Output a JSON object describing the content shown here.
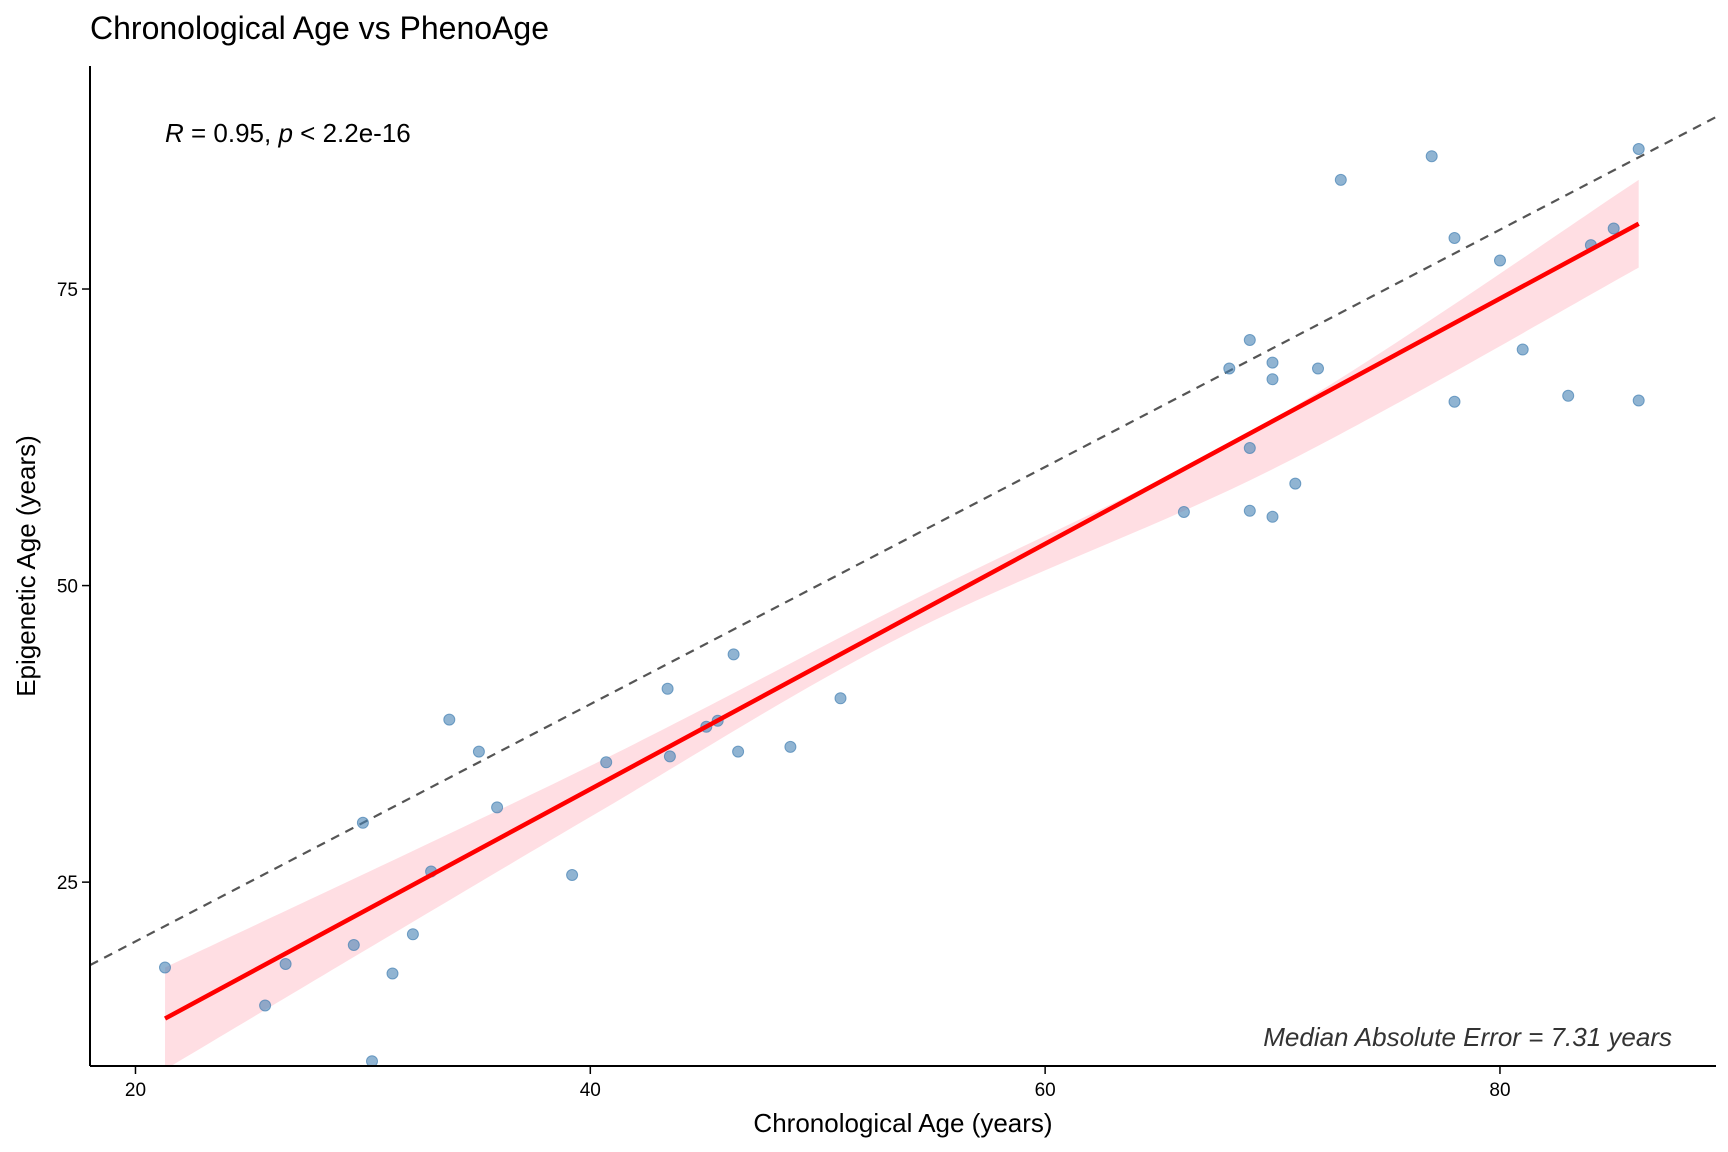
{
  "chart_data": {
    "type": "scatter",
    "title": "Chronological Age vs PhenoAge",
    "xlabel": "Chronological Age (years)",
    "ylabel": "Epigenetic Age (years)",
    "xlim": [
      18,
      89.5
    ],
    "ylim": [
      9.5,
      93.8
    ],
    "xticks": [
      20,
      40,
      60,
      80
    ],
    "yticks": [
      25,
      50,
      75
    ],
    "grid": false,
    "legend": "none",
    "annotation": {
      "R_symbol": "R",
      "r_text": " = 0.95, ",
      "p_symbol": "p",
      "p_text": " < 2.2e-16"
    },
    "mae_text": "Median Absolute Error = 7.31 years",
    "identity_line": {
      "style": "dashed",
      "color": "#555555"
    },
    "regression": {
      "color": "#FF0000",
      "ribbon_color": "#FFB6C1",
      "x_range": [
        21.3,
        86.1
      ],
      "fit": [
        [
          21.3,
          13.5
        ],
        [
          86.1,
          80.5
        ]
      ],
      "ci_band": {
        "upper": [
          [
            21.3,
            17.8
          ],
          [
            40,
            34.8
          ],
          [
            54,
            48.6
          ],
          [
            70,
            64.0
          ],
          [
            86.1,
            84.2
          ]
        ],
        "lower": [
          [
            21.3,
            9.2
          ],
          [
            40,
            30.5
          ],
          [
            54,
            46.0
          ],
          [
            70,
            59.8
          ],
          [
            86.1,
            76.8
          ]
        ]
      }
    },
    "points_color": "#4682B4",
    "points": [
      {
        "x": 21.3,
        "y": 17.8
      },
      {
        "x": 25.7,
        "y": 14.6
      },
      {
        "x": 26.6,
        "y": 18.1
      },
      {
        "x": 29.6,
        "y": 19.7
      },
      {
        "x": 30.0,
        "y": 30.0
      },
      {
        "x": 30.4,
        "y": 9.9
      },
      {
        "x": 31.3,
        "y": 17.3
      },
      {
        "x": 32.2,
        "y": 20.6
      },
      {
        "x": 33.0,
        "y": 25.9
      },
      {
        "x": 33.8,
        "y": 38.7
      },
      {
        "x": 35.1,
        "y": 36.0
      },
      {
        "x": 35.9,
        "y": 31.3
      },
      {
        "x": 39.2,
        "y": 25.6
      },
      {
        "x": 40.7,
        "y": 35.1
      },
      {
        "x": 43.4,
        "y": 41.3
      },
      {
        "x": 43.5,
        "y": 35.6
      },
      {
        "x": 45.1,
        "y": 38.1
      },
      {
        "x": 45.6,
        "y": 38.6
      },
      {
        "x": 46.3,
        "y": 44.2
      },
      {
        "x": 46.5,
        "y": 36.0
      },
      {
        "x": 48.8,
        "y": 36.4
      },
      {
        "x": 51.0,
        "y": 40.5
      },
      {
        "x": 66.1,
        "y": 56.2
      },
      {
        "x": 68.1,
        "y": 68.3
      },
      {
        "x": 69.0,
        "y": 70.7
      },
      {
        "x": 69.0,
        "y": 61.6
      },
      {
        "x": 69.0,
        "y": 56.3
      },
      {
        "x": 70.0,
        "y": 68.8
      },
      {
        "x": 70.0,
        "y": 67.4
      },
      {
        "x": 70.0,
        "y": 55.8
      },
      {
        "x": 71.0,
        "y": 58.6
      },
      {
        "x": 72.0,
        "y": 68.3
      },
      {
        "x": 73.0,
        "y": 84.2
      },
      {
        "x": 77.0,
        "y": 86.2
      },
      {
        "x": 78.0,
        "y": 79.3
      },
      {
        "x": 78.0,
        "y": 65.5
      },
      {
        "x": 80.0,
        "y": 77.4
      },
      {
        "x": 81.0,
        "y": 69.9
      },
      {
        "x": 83.0,
        "y": 66.0
      },
      {
        "x": 84.0,
        "y": 78.7
      },
      {
        "x": 85.0,
        "y": 80.1
      },
      {
        "x": 86.1,
        "y": 86.8
      },
      {
        "x": 86.1,
        "y": 65.6
      }
    ]
  }
}
